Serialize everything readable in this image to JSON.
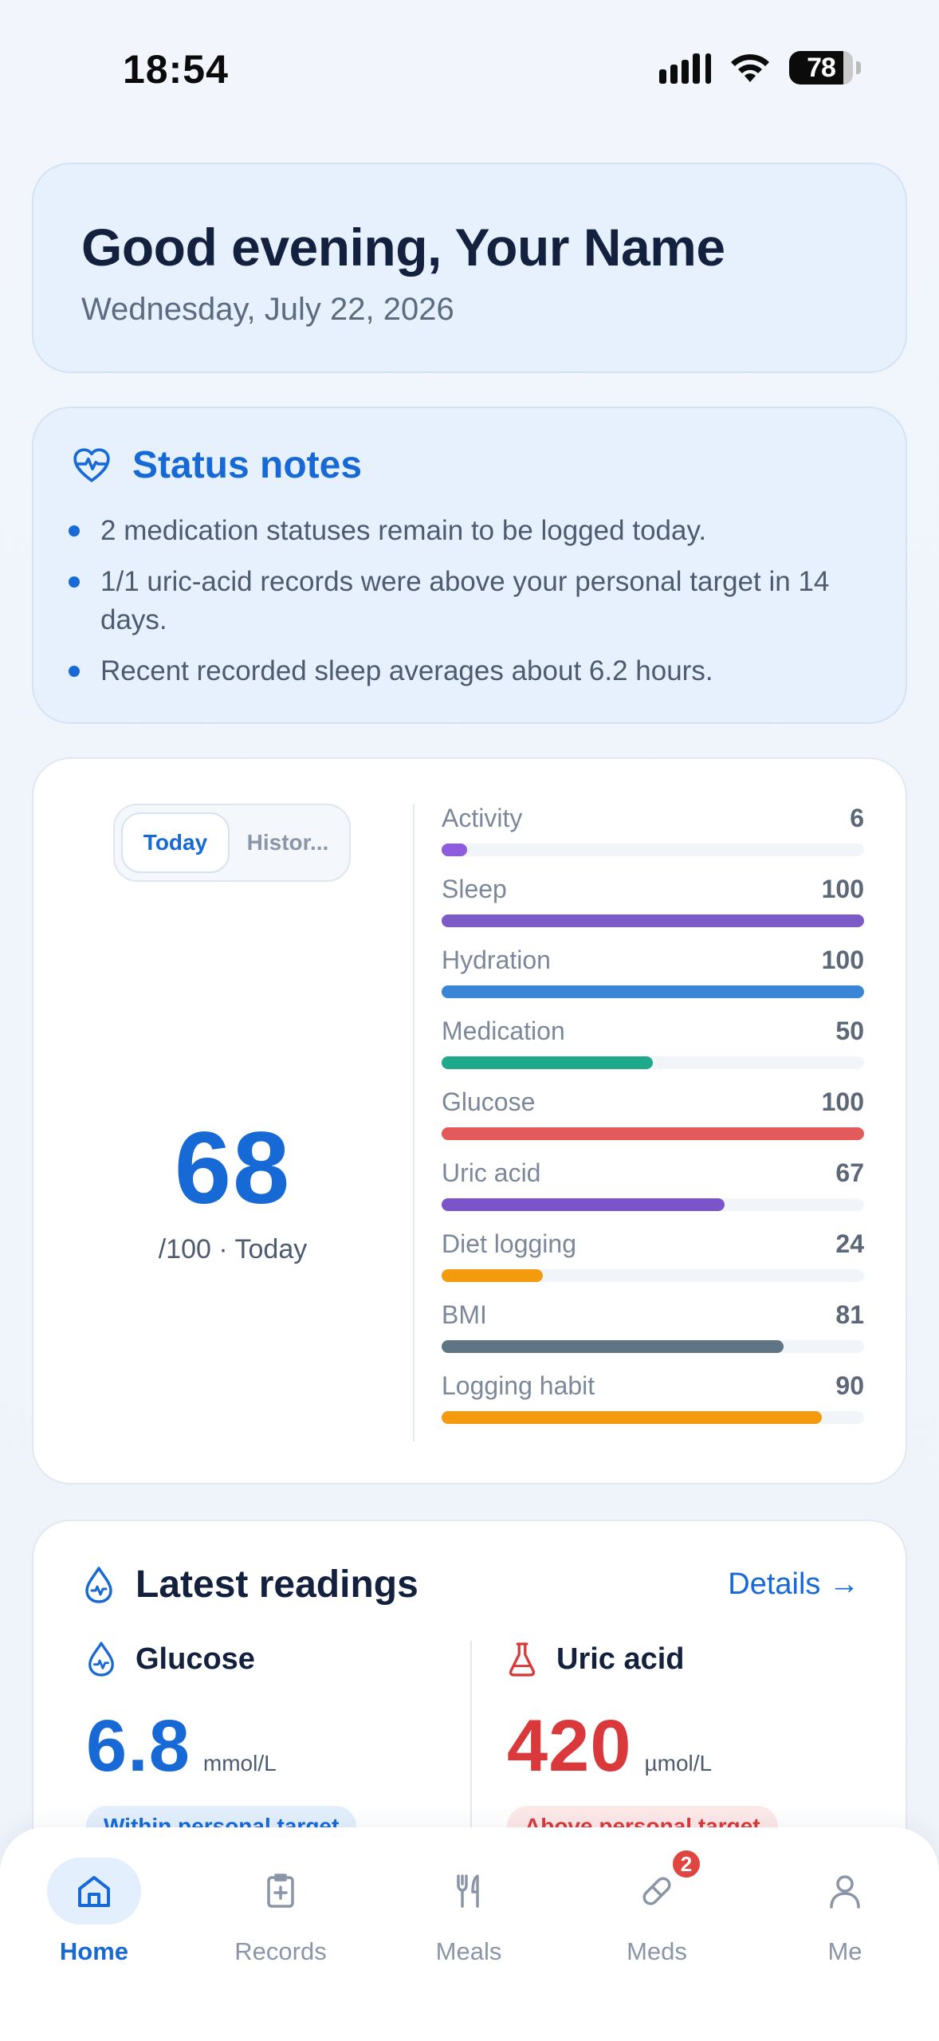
{
  "status_bar": {
    "time": "18:54",
    "battery": "78"
  },
  "greeting": {
    "title": "Good evening, Your Name",
    "date": "Wednesday, July 22, 2026"
  },
  "status_notes": {
    "title": "Status notes",
    "items": [
      "2 medication statuses remain to be logged today.",
      "1/1 uric-acid records were above your personal target in 14 days.",
      "Recent recorded sleep averages about 6.2 hours."
    ]
  },
  "score": {
    "tabs": [
      "Today",
      "Histor..."
    ],
    "value": "68",
    "subtitle": "/100 · Today",
    "metrics": [
      {
        "name": "Activity",
        "value": 6,
        "color": "#8e5cde"
      },
      {
        "name": "Sleep",
        "value": 100,
        "color": "#7c5ac8"
      },
      {
        "name": "Hydration",
        "value": 100,
        "color": "#3a86d6"
      },
      {
        "name": "Medication",
        "value": 50,
        "color": "#1ea88c"
      },
      {
        "name": "Glucose",
        "value": 100,
        "color": "#e25a5a"
      },
      {
        "name": "Uric acid",
        "value": 67,
        "color": "#7a55c9"
      },
      {
        "name": "Diet logging",
        "value": 24,
        "color": "#f39a0e"
      },
      {
        "name": "BMI",
        "value": 81,
        "color": "#5f7583"
      },
      {
        "name": "Logging habit",
        "value": 90,
        "color": "#f39a0e"
      }
    ]
  },
  "readings": {
    "title": "Latest readings",
    "details": "Details →",
    "glucose": {
      "label": "Glucose",
      "value": "6.8",
      "unit": "mmol/L",
      "status": "Within personal target",
      "color": "#1769d6"
    },
    "uric_acid": {
      "label": "Uric acid",
      "value": "420",
      "unit": "µmol/L",
      "status": "Above personal target",
      "color": "#d9393a"
    }
  },
  "nav": {
    "items": [
      {
        "label": "Home",
        "icon": "home-icon",
        "active": true
      },
      {
        "label": "Records",
        "icon": "records-icon"
      },
      {
        "label": "Meals",
        "icon": "utensils-icon"
      },
      {
        "label": "Meds",
        "icon": "pill-icon",
        "badge": "2"
      },
      {
        "label": "Me",
        "icon": "person-icon"
      }
    ]
  }
}
